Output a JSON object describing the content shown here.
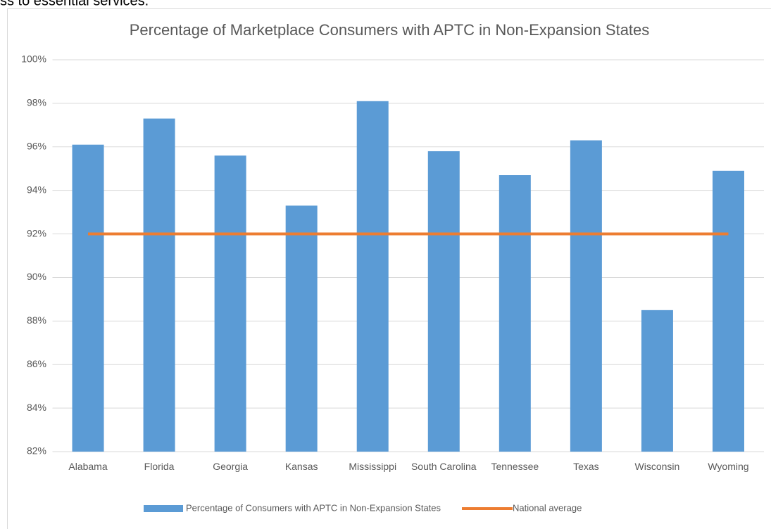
{
  "page_text": "ss to essential services.",
  "chart_data": {
    "type": "bar",
    "title": "Percentage of Marketplace Consumers with APTC in Non-Expansion States",
    "categories": [
      "Alabama",
      "Florida",
      "Georgia",
      "Kansas",
      "Mississippi",
      "South Carolina",
      "Tennessee",
      "Texas",
      "Wisconsin",
      "Wyoming"
    ],
    "series": [
      {
        "name": "Percentage of Consumers with APTC in Non-Expansion States",
        "type": "bar",
        "color": "#5b9bd5",
        "values": [
          96.1,
          97.3,
          95.6,
          93.3,
          98.1,
          95.8,
          94.7,
          96.3,
          88.5,
          94.9
        ]
      },
      {
        "name": "National average",
        "type": "line",
        "color": "#ed7d31",
        "values": [
          92,
          92,
          92,
          92,
          92,
          92,
          92,
          92,
          92,
          92
        ]
      }
    ],
    "ylim": [
      82,
      100
    ],
    "yticks": [
      {
        "value": 82,
        "label": "82%"
      },
      {
        "value": 84,
        "label": "84%"
      },
      {
        "value": 86,
        "label": "86%"
      },
      {
        "value": 88,
        "label": "88%"
      },
      {
        "value": 90,
        "label": "90%"
      },
      {
        "value": 92,
        "label": "92%"
      },
      {
        "value": 94,
        "label": "94%"
      },
      {
        "value": 96,
        "label": "96%"
      },
      {
        "value": 98,
        "label": "98%"
      },
      {
        "value": 100,
        "label": "100%"
      }
    ],
    "grid": true,
    "legend": "bottom"
  }
}
